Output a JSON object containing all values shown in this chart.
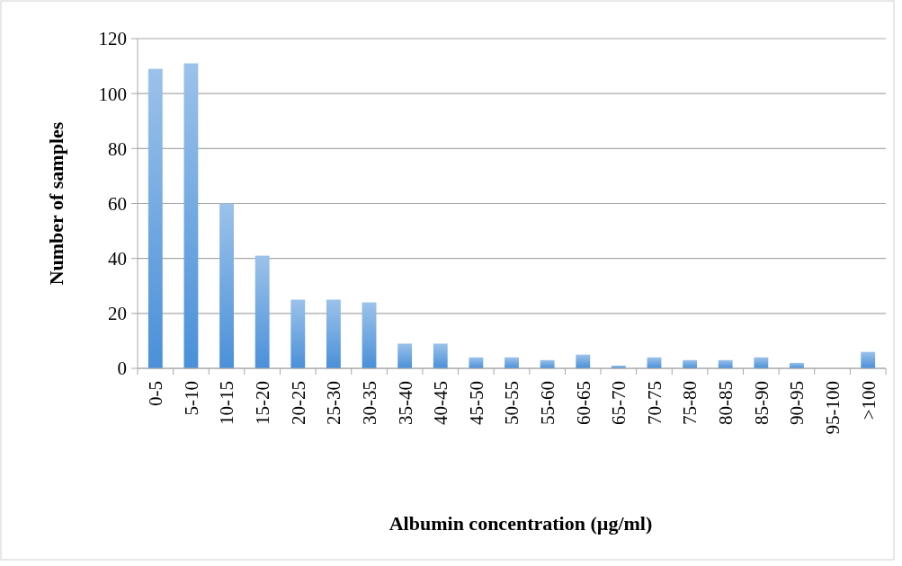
{
  "chart_data": {
    "type": "bar",
    "xlabel": "Albumin concentration (µg/ml)",
    "ylabel": "Number of samples",
    "categories": [
      "0-5",
      "5-10",
      "10-15",
      "15-20",
      "20-25",
      "25-30",
      "30-35",
      "35-40",
      "40-45",
      "45-50",
      "50-55",
      "55-60",
      "60-65",
      "65-70",
      "70-75",
      "75-80",
      "80-85",
      "85-90",
      "90-95",
      "95-100",
      ">100"
    ],
    "values": [
      109,
      111,
      60,
      41,
      25,
      25,
      24,
      9,
      9,
      4,
      4,
      3,
      5,
      1,
      4,
      3,
      3,
      4,
      2,
      0,
      6
    ],
    "color": "#4a90d9",
    "ylim": [
      0,
      120
    ],
    "yticks": [
      0,
      20,
      40,
      60,
      80,
      100,
      120
    ],
    "grid": "y"
  }
}
